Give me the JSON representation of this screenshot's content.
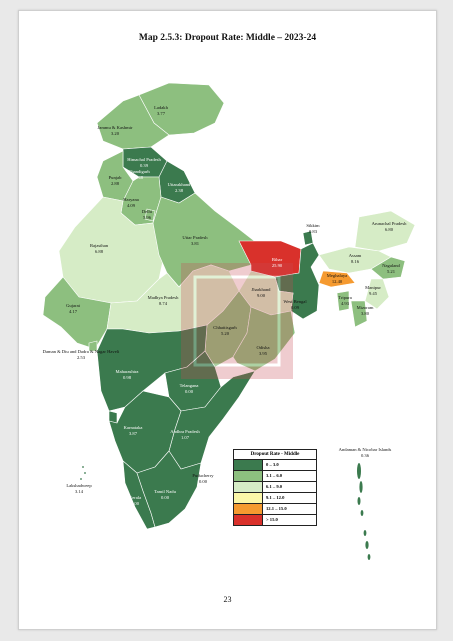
{
  "title": "Map 2.5.3: Dropout Rate: Middle – 2023-24",
  "page_number": "23",
  "legend": {
    "title": "Dropout Rate - Middle",
    "items": [
      {
        "label": "0 – 3.0",
        "color": "#3b7a4e"
      },
      {
        "label": "3.1 – 6.0",
        "color": "#8dbf7f"
      },
      {
        "label": "6.1 – 9.0",
        "color": "#d6ecc6"
      },
      {
        "label": "9.1 – 12.0",
        "color": "#fbf7a8"
      },
      {
        "label": "12.1 – 15.0",
        "color": "#f59a30"
      },
      {
        "label": "> 15.0",
        "color": "#d9312b"
      }
    ]
  },
  "regions": [
    {
      "name": "Ladakh",
      "value": "3.77"
    },
    {
      "name": "Jammu & Kashmir",
      "value": "3.20"
    },
    {
      "name": "Himachal Pradesh",
      "value": "0.39"
    },
    {
      "name": "Punjab",
      "value": "2.88"
    },
    {
      "name": "Chandigarh",
      "value": "0.48"
    },
    {
      "name": "Uttarakhand",
      "value": "2.38"
    },
    {
      "name": "Haryana",
      "value": "4.09"
    },
    {
      "name": "Delhi",
      "value": "5.96"
    },
    {
      "name": "Rajasthan",
      "value": "6.88"
    },
    {
      "name": "Uttar Pradesh",
      "value": "3.81"
    },
    {
      "name": "Bihar",
      "value": "25.90"
    },
    {
      "name": "Sikkim",
      "value": "0.83"
    },
    {
      "name": "Arunachal Pradesh",
      "value": "6.80"
    },
    {
      "name": "Assam",
      "value": "8.16"
    },
    {
      "name": "Nagaland",
      "value": "5.21"
    },
    {
      "name": "Meghalaya",
      "value": "12.40"
    },
    {
      "name": "Manipur",
      "value": "9.45"
    },
    {
      "name": "Tripura",
      "value": "4.93"
    },
    {
      "name": "Mizoram",
      "value": "3.80"
    },
    {
      "name": "Jharkhand",
      "value": "9.00"
    },
    {
      "name": "West Bengal",
      "value": "0.09"
    },
    {
      "name": "Gujarat",
      "value": "4.17"
    },
    {
      "name": "Madhya Pradesh",
      "value": "8.74"
    },
    {
      "name": "Chhattisgarh",
      "value": "5.20"
    },
    {
      "name": "Odisha",
      "value": "3.95"
    },
    {
      "name": "Daman & Diu and Dadra & Nagar Haveli",
      "value": "2.53"
    },
    {
      "name": "Maharashtra",
      "value": "0.98"
    },
    {
      "name": "Telangana",
      "value": "0.00"
    },
    {
      "name": "Goa",
      "value": "0.00"
    },
    {
      "name": "Karnataka",
      "value": "3.87"
    },
    {
      "name": "Andhra Pradesh",
      "value": "1.07"
    },
    {
      "name": "Puducherry",
      "value": "0.00"
    },
    {
      "name": "Kerala",
      "value": "0.00"
    },
    {
      "name": "Tamil Nadu",
      "value": "0.00"
    },
    {
      "name": "Lakshadweep",
      "value": "3.14"
    },
    {
      "name": "Andaman & Nicobar Islands",
      "value": "0.36"
    }
  ]
}
